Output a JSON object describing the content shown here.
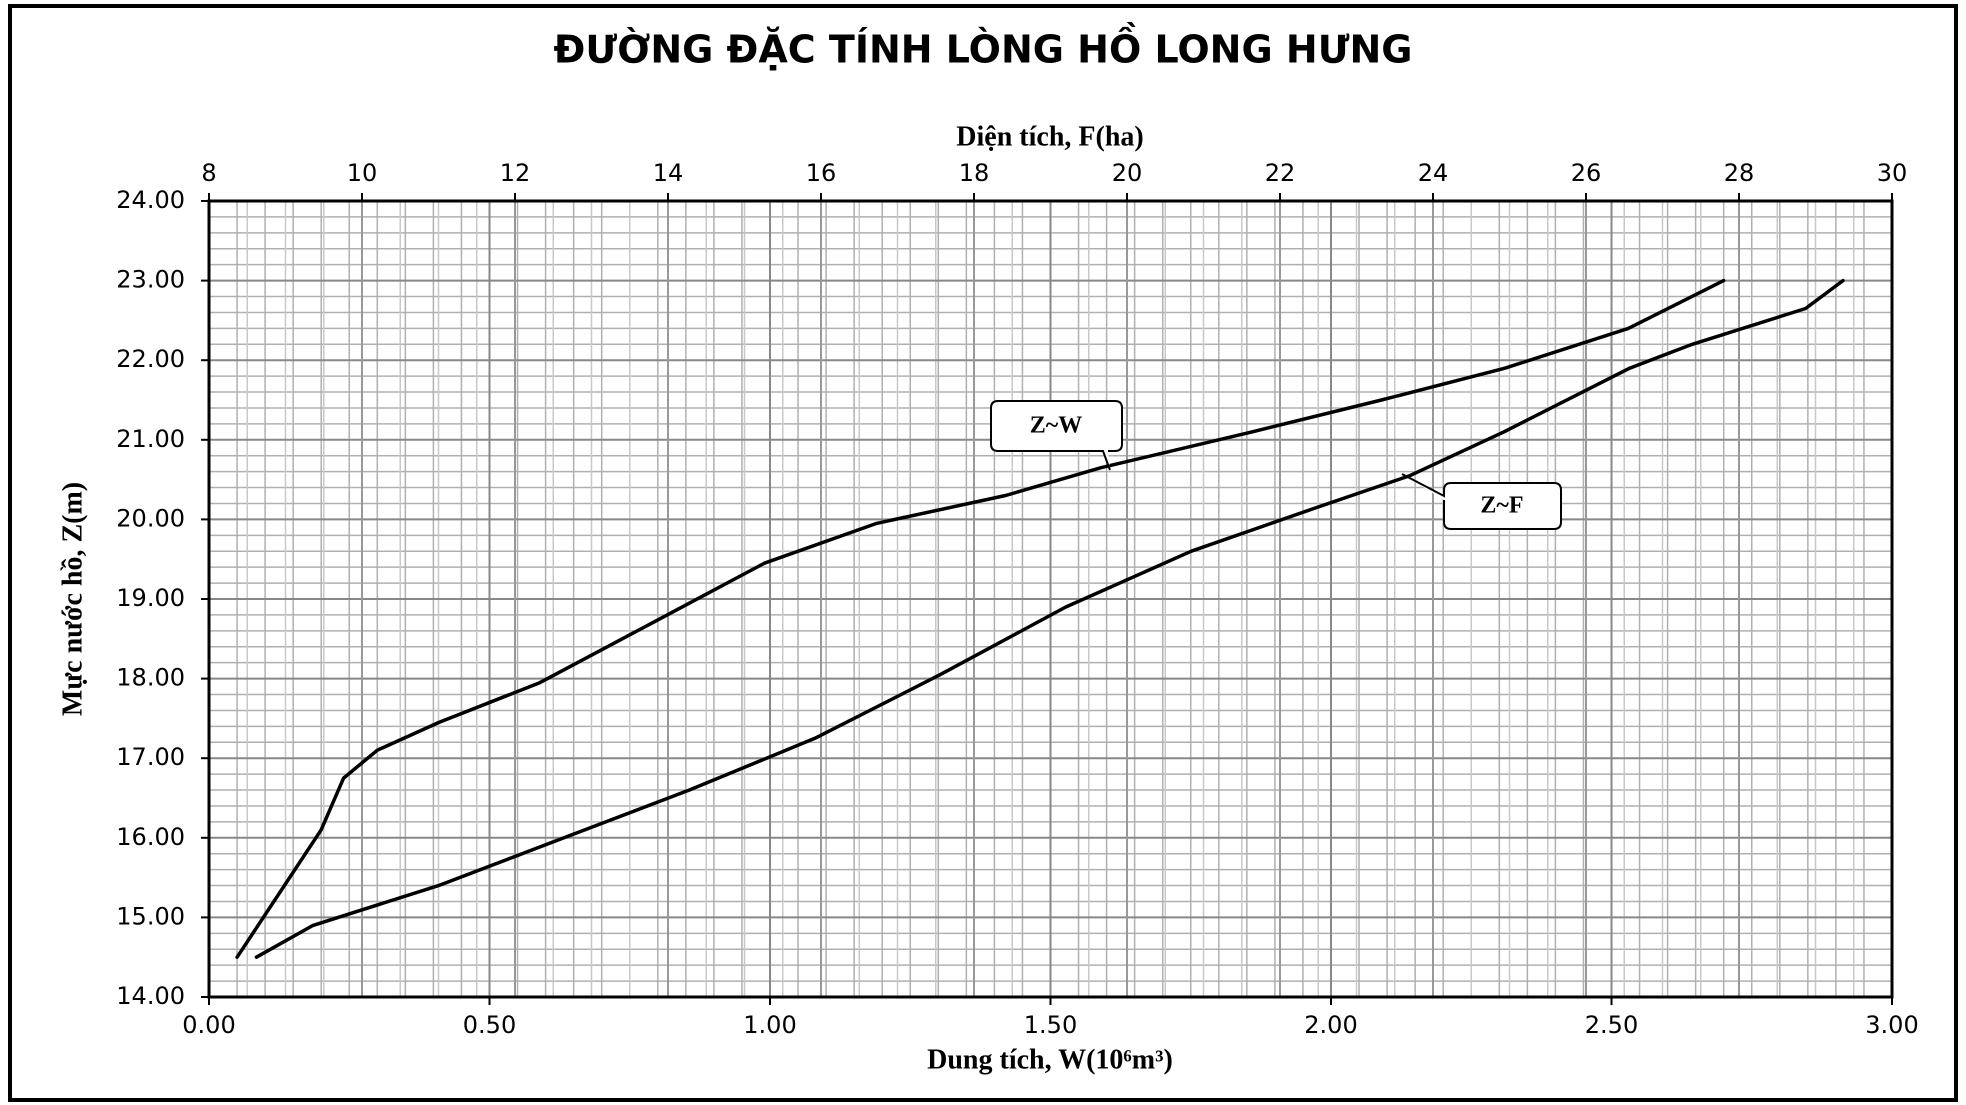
{
  "chart_data": {
    "type": "line",
    "title": "ĐƯỜNG ĐẶC TÍNH LÒNG HỒ LONG HƯNG",
    "xlabel": "Dung tích, W(10⁶m³)",
    "x2label": "Diện tích, F(ha)",
    "ylabel": "Mực nước hồ, Z(m)",
    "xlim": [
      0,
      3
    ],
    "xticks": [
      {
        "value": 0,
        "label": "0.00"
      },
      {
        "value": 0.5,
        "label": "0.50"
      },
      {
        "value": 1,
        "label": "1.00"
      },
      {
        "value": 1.5,
        "label": "1.50"
      },
      {
        "value": 2,
        "label": "2.00"
      },
      {
        "value": 2.5,
        "label": "2.50"
      },
      {
        "value": 3,
        "label": "3.00"
      }
    ],
    "x2lim": [
      8,
      30
    ],
    "x2ticks": [
      8,
      10,
      12,
      14,
      16,
      18,
      20,
      22,
      24,
      26,
      28,
      30
    ],
    "ylim": [
      14,
      24
    ],
    "yticks": [
      {
        "value": 14,
        "label": "14.00"
      },
      {
        "value": 15,
        "label": "15.00"
      },
      {
        "value": 16,
        "label": "16.00"
      },
      {
        "value": 17,
        "label": "17.00"
      },
      {
        "value": 18,
        "label": "18.00"
      },
      {
        "value": 19,
        "label": "19.00"
      },
      {
        "value": 20,
        "label": "20.00"
      },
      {
        "value": 21,
        "label": "21.00"
      },
      {
        "value": 22,
        "label": "22.00"
      },
      {
        "value": 23,
        "label": "23.00"
      },
      {
        "value": 24,
        "label": "24.00"
      }
    ],
    "grid": true,
    "series": [
      {
        "name": "Z~W",
        "color": "#000000",
        "axis": "x",
        "x": [
          0.05,
          0.2,
          0.24,
          0.3,
          0.41,
          0.59,
          0.79,
          0.99,
          1.19,
          1.42,
          1.59,
          1.86,
          2.09,
          2.31,
          2.53,
          2.7
        ],
        "values": [
          14.5,
          16.1,
          16.75,
          17.1,
          17.45,
          17.95,
          18.7,
          19.45,
          19.95,
          20.3,
          20.65,
          21.1,
          21.5,
          21.9,
          22.4,
          23.0
        ]
      },
      {
        "name": "Z~F",
        "color": "#000000",
        "axis": "x2",
        "x": [
          8.62,
          9.36,
          11.0,
          12.64,
          14.28,
          15.92,
          17.56,
          19.2,
          20.84,
          22.48,
          23.7,
          24.93,
          26.57,
          27.39,
          28.87,
          29.36
        ],
        "values": [
          14.5,
          14.9,
          15.4,
          16.0,
          16.6,
          17.25,
          18.05,
          18.9,
          19.6,
          20.15,
          20.55,
          21.1,
          21.9,
          22.2,
          22.65,
          23.0
        ]
      }
    ]
  }
}
